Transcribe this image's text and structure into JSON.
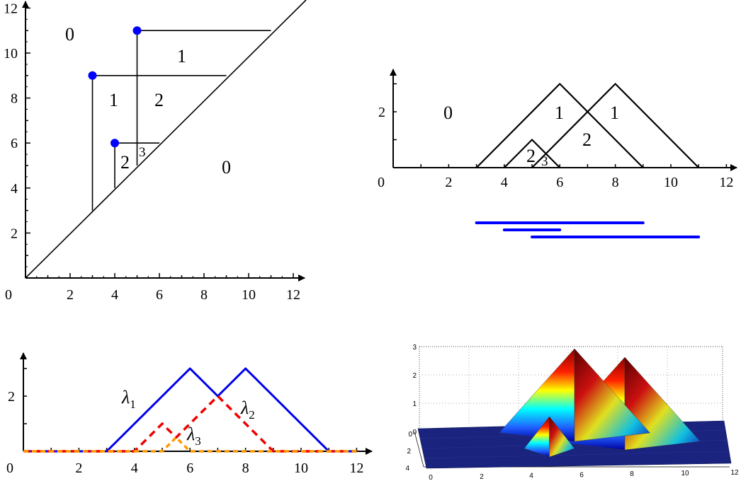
{
  "persistence_diagram": {
    "x_ticks": [
      "0",
      "2",
      "4",
      "6",
      "8",
      "10",
      "12"
    ],
    "y_ticks": [
      "2",
      "4",
      "6",
      "8",
      "10",
      "12"
    ],
    "points": [
      {
        "birth": 3,
        "death": 9
      },
      {
        "birth": 4,
        "death": 6
      },
      {
        "birth": 5,
        "death": 11
      }
    ],
    "region_labels": {
      "outer": "0",
      "top_right": "1",
      "mid_left": "1",
      "mid_right": "2",
      "small_left": "2",
      "small_right": "3",
      "below_diagonal": "0"
    },
    "point_color": "#0000ff"
  },
  "tent_functions": {
    "x_ticks": [
      "0",
      "2",
      "4",
      "6",
      "8",
      "10",
      "12"
    ],
    "y_ticks": [
      "2"
    ],
    "region_labels": {
      "outer": "0",
      "left_peak": "1",
      "right_peak": "1",
      "middle": "2",
      "small_left": "2",
      "small_right": "3"
    }
  },
  "barcode": {
    "bars": [
      {
        "start": 3,
        "end": 9
      },
      {
        "start": 4,
        "end": 6
      },
      {
        "start": 5,
        "end": 11
      }
    ],
    "color": "#0000ff"
  },
  "landscape": {
    "x_ticks": [
      "0",
      "2",
      "4",
      "6",
      "8",
      "10",
      "12"
    ],
    "y_ticks": [
      "2"
    ],
    "labels": [
      {
        "symbol": "λ",
        "sub": "1"
      },
      {
        "symbol": "λ",
        "sub": "2"
      },
      {
        "symbol": "λ",
        "sub": "3"
      }
    ],
    "colors": {
      "lambda1": "#0000ee",
      "lambda2": "#ee0000",
      "lambda3": "#ff9900"
    }
  },
  "surface3d": {
    "z_ticks": [
      "0",
      "1",
      "2",
      "3"
    ],
    "y_ticks": [
      "0",
      "2",
      "4"
    ],
    "x_ticks": [
      "0",
      "2",
      "4",
      "6",
      "8",
      "10",
      "12"
    ]
  }
}
